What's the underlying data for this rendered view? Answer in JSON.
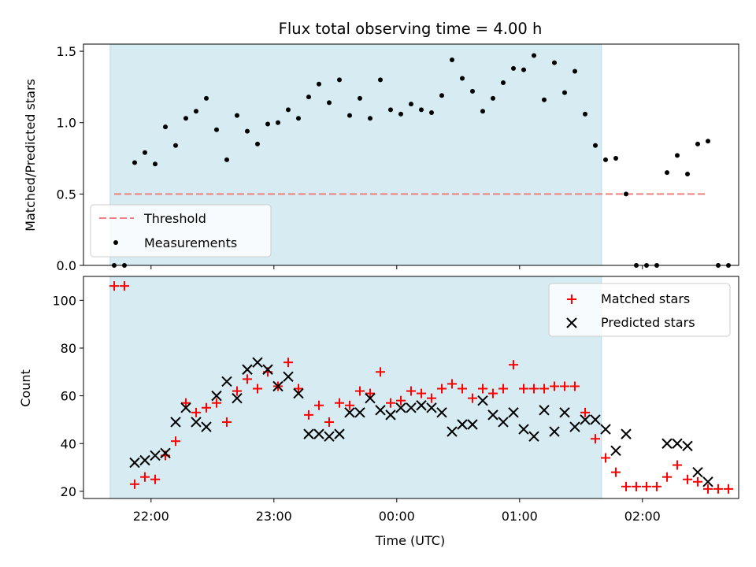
{
  "chart_data": [
    {
      "type": "scatter",
      "title": "Flux total observing time = 4.00 h",
      "xlabel": "",
      "ylabel": "Matched/Predicted stars",
      "xlim": [
        "21:27",
        "02:47"
      ],
      "ylim": [
        0,
        1.55
      ],
      "yticks": [
        "0.0",
        "0.5",
        "1.0",
        "1.5"
      ],
      "observing_window": [
        "21:40",
        "01:40"
      ],
      "legend_position": "lower-left",
      "threshold": {
        "name": "Threshold",
        "value": 0.5,
        "x_start": "21:42",
        "x_end": "02:32",
        "color": "#f08080"
      },
      "series": [
        {
          "name": "Measurements",
          "color": "#000000",
          "points": [
            [
              "21:42",
              0
            ],
            [
              "21:47",
              0
            ],
            [
              "21:52",
              0.72
            ],
            [
              "21:57",
              0.79
            ],
            [
              "22:02",
              0.71
            ],
            [
              "22:07",
              0.97
            ],
            [
              "22:12",
              0.84
            ],
            [
              "22:17",
              1.03
            ],
            [
              "22:22",
              1.08
            ],
            [
              "22:27",
              1.17
            ],
            [
              "22:32",
              0.95
            ],
            [
              "22:37",
              0.74
            ],
            [
              "22:42",
              1.05
            ],
            [
              "22:47",
              0.94
            ],
            [
              "22:52",
              0.85
            ],
            [
              "22:57",
              0.99
            ],
            [
              "23:02",
              1.0
            ],
            [
              "23:07",
              1.09
            ],
            [
              "23:12",
              1.03
            ],
            [
              "23:17",
              1.18
            ],
            [
              "23:22",
              1.27
            ],
            [
              "23:27",
              1.14
            ],
            [
              "23:32",
              1.3
            ],
            [
              "23:37",
              1.05
            ],
            [
              "23:42",
              1.17
            ],
            [
              "23:47",
              1.03
            ],
            [
              "23:52",
              1.3
            ],
            [
              "23:57",
              1.09
            ],
            [
              "00:02",
              1.06
            ],
            [
              "00:07",
              1.13
            ],
            [
              "00:12",
              1.09
            ],
            [
              "00:17",
              1.07
            ],
            [
              "00:22",
              1.19
            ],
            [
              "00:27",
              1.44
            ],
            [
              "00:32",
              1.31
            ],
            [
              "00:37",
              1.22
            ],
            [
              "00:42",
              1.08
            ],
            [
              "00:47",
              1.17
            ],
            [
              "00:52",
              1.28
            ],
            [
              "00:57",
              1.38
            ],
            [
              "01:02",
              1.37
            ],
            [
              "01:07",
              1.47
            ],
            [
              "01:12",
              1.16
            ],
            [
              "01:17",
              1.42
            ],
            [
              "01:22",
              1.21
            ],
            [
              "01:27",
              1.36
            ],
            [
              "01:32",
              1.06
            ],
            [
              "01:37",
              0.84
            ],
            [
              "01:42",
              0.74
            ],
            [
              "01:47",
              0.75
            ],
            [
              "01:52",
              0.5
            ],
            [
              "01:57",
              0
            ],
            [
              "02:02",
              0
            ],
            [
              "02:07",
              0
            ],
            [
              "02:12",
              0.65
            ],
            [
              "02:17",
              0.77
            ],
            [
              "02:22",
              0.64
            ],
            [
              "02:27",
              0.85
            ],
            [
              "02:32",
              0.87
            ],
            [
              "02:37",
              0
            ],
            [
              "02:42",
              0
            ]
          ]
        }
      ]
    },
    {
      "type": "scatter",
      "title": "",
      "xlabel": "Time (UTC)",
      "ylabel": "Count",
      "xlim": [
        "21:27",
        "02:47"
      ],
      "ylim": [
        17,
        110
      ],
      "xticks": [
        "22:00",
        "23:00",
        "00:00",
        "01:00",
        "02:00"
      ],
      "yticks": [
        "20",
        "40",
        "60",
        "80",
        "100"
      ],
      "observing_window": [
        "21:40",
        "01:40"
      ],
      "legend_position": "upper-right",
      "series": [
        {
          "name": "Matched stars",
          "color": "#ff0000",
          "marker": "plus",
          "points": [
            [
              "21:42",
              106
            ],
            [
              "21:47",
              106
            ],
            [
              "21:52",
              23
            ],
            [
              "21:57",
              26
            ],
            [
              "22:02",
              25
            ],
            [
              "22:07",
              35
            ],
            [
              "22:12",
              41
            ],
            [
              "22:17",
              57
            ],
            [
              "22:22",
              53
            ],
            [
              "22:27",
              55
            ],
            [
              "22:32",
              57
            ],
            [
              "22:37",
              49
            ],
            [
              "22:42",
              62
            ],
            [
              "22:47",
              67
            ],
            [
              "22:52",
              63
            ],
            [
              "22:57",
              70
            ],
            [
              "23:02",
              64
            ],
            [
              "23:07",
              74
            ],
            [
              "23:12",
              63
            ],
            [
              "23:17",
              52
            ],
            [
              "23:22",
              56
            ],
            [
              "23:27",
              49
            ],
            [
              "23:32",
              57
            ],
            [
              "23:37",
              56
            ],
            [
              "23:42",
              62
            ],
            [
              "23:47",
              61
            ],
            [
              "23:52",
              70
            ],
            [
              "23:57",
              57
            ],
            [
              "00:02",
              58
            ],
            [
              "00:07",
              62
            ],
            [
              "00:12",
              61
            ],
            [
              "00:17",
              59
            ],
            [
              "00:22",
              63
            ],
            [
              "00:27",
              65
            ],
            [
              "00:32",
              63
            ],
            [
              "00:37",
              59
            ],
            [
              "00:42",
              63
            ],
            [
              "00:47",
              61
            ],
            [
              "00:52",
              63
            ],
            [
              "00:57",
              73
            ],
            [
              "01:02",
              63
            ],
            [
              "01:07",
              63
            ],
            [
              "01:12",
              63
            ],
            [
              "01:17",
              64
            ],
            [
              "01:22",
              64
            ],
            [
              "01:27",
              64
            ],
            [
              "01:32",
              53
            ],
            [
              "01:37",
              42
            ],
            [
              "01:42",
              34
            ],
            [
              "01:47",
              28
            ],
            [
              "01:52",
              22
            ],
            [
              "01:57",
              22
            ],
            [
              "02:02",
              22
            ],
            [
              "02:07",
              22
            ],
            [
              "02:12",
              26
            ],
            [
              "02:17",
              31
            ],
            [
              "02:22",
              25
            ],
            [
              "02:27",
              24
            ],
            [
              "02:32",
              21
            ],
            [
              "02:37",
              21
            ],
            [
              "02:42",
              21
            ]
          ]
        },
        {
          "name": "Predicted stars",
          "color": "#000000",
          "marker": "x",
          "points": [
            [
              "21:52",
              32
            ],
            [
              "21:57",
              33
            ],
            [
              "22:02",
              35
            ],
            [
              "22:07",
              36
            ],
            [
              "22:12",
              49
            ],
            [
              "22:17",
              55
            ],
            [
              "22:22",
              49
            ],
            [
              "22:27",
              47
            ],
            [
              "22:32",
              60
            ],
            [
              "22:37",
              66
            ],
            [
              "22:42",
              59
            ],
            [
              "22:47",
              71
            ],
            [
              "22:52",
              74
            ],
            [
              "22:57",
              71
            ],
            [
              "23:02",
              64
            ],
            [
              "23:07",
              68
            ],
            [
              "23:12",
              61
            ],
            [
              "23:17",
              44
            ],
            [
              "23:22",
              44
            ],
            [
              "23:27",
              43
            ],
            [
              "23:32",
              44
            ],
            [
              "23:37",
              53
            ],
            [
              "23:42",
              53
            ],
            [
              "23:47",
              59
            ],
            [
              "23:52",
              54
            ],
            [
              "23:57",
              52
            ],
            [
              "00:02",
              55
            ],
            [
              "00:07",
              55
            ],
            [
              "00:12",
              56
            ],
            [
              "00:17",
              55
            ],
            [
              "00:22",
              53
            ],
            [
              "00:27",
              45
            ],
            [
              "00:32",
              48
            ],
            [
              "00:37",
              48
            ],
            [
              "00:42",
              58
            ],
            [
              "00:47",
              52
            ],
            [
              "00:52",
              49
            ],
            [
              "00:57",
              53
            ],
            [
              "01:02",
              46
            ],
            [
              "01:07",
              43
            ],
            [
              "01:12",
              54
            ],
            [
              "01:17",
              45
            ],
            [
              "01:22",
              53
            ],
            [
              "01:27",
              47
            ],
            [
              "01:32",
              50
            ],
            [
              "01:37",
              50
            ],
            [
              "01:42",
              46
            ],
            [
              "01:47",
              37
            ],
            [
              "01:52",
              44
            ],
            [
              "02:12",
              40
            ],
            [
              "02:17",
              40
            ],
            [
              "02:22",
              39
            ],
            [
              "02:27",
              28
            ],
            [
              "02:32",
              24
            ]
          ]
        }
      ]
    }
  ]
}
